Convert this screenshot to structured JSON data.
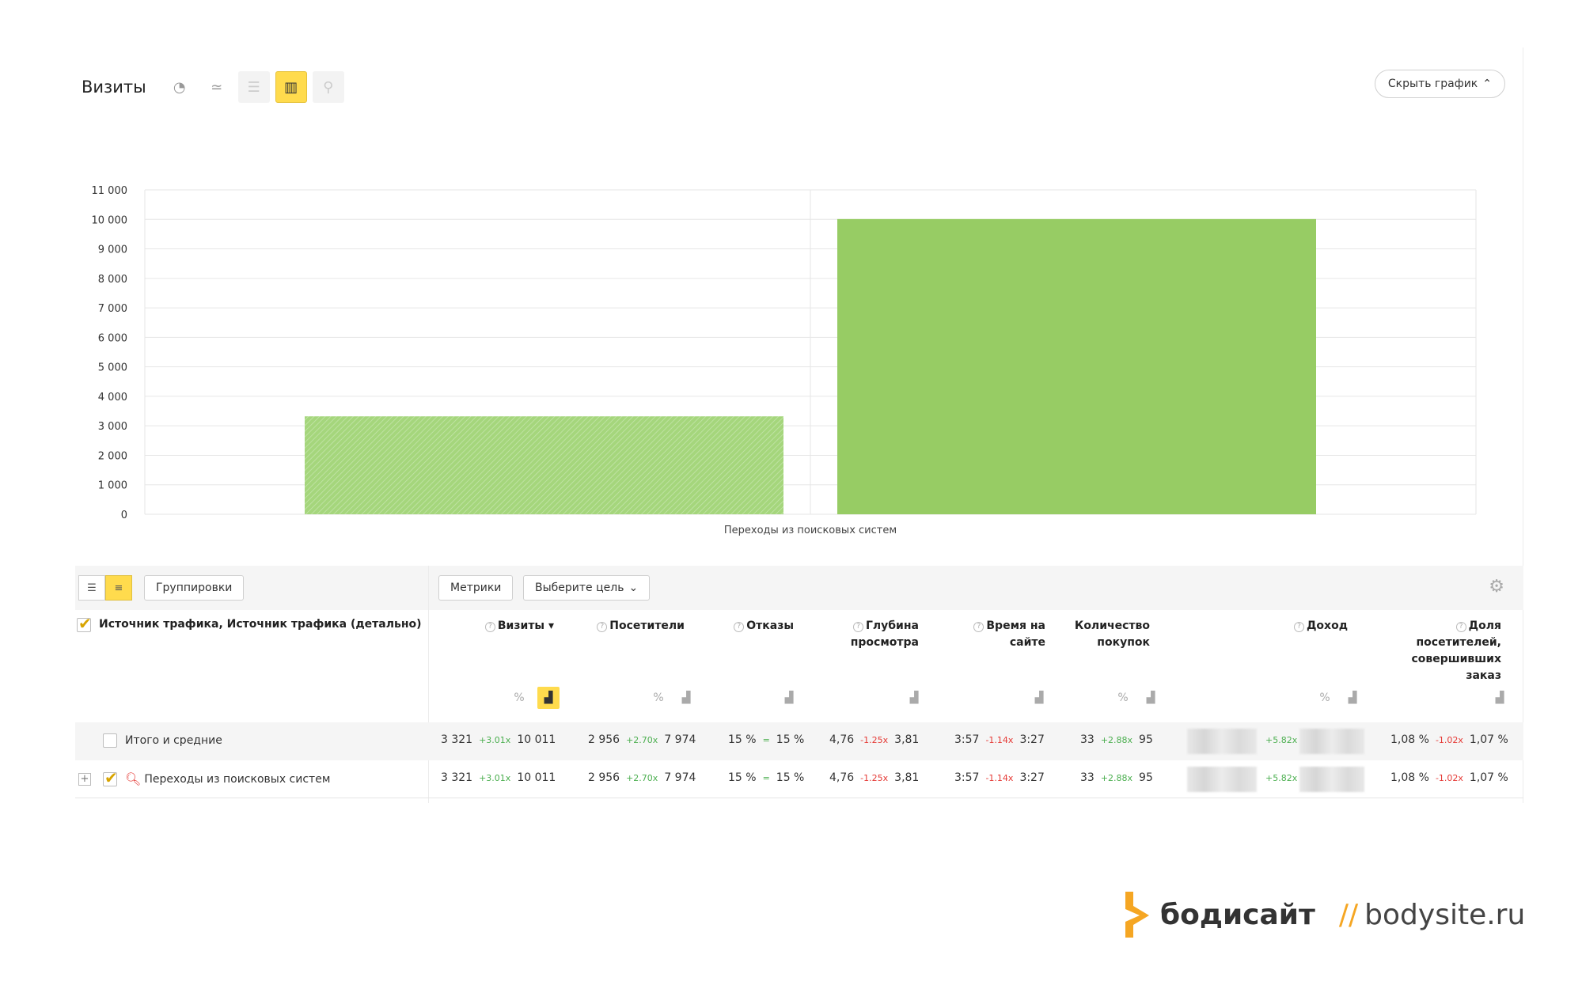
{
  "header": {
    "title": "Визиты",
    "hide_label": "Скрыть график"
  },
  "chart_data": {
    "type": "bar",
    "categories": [
      "Переходы из поисковых систем"
    ],
    "series": [
      {
        "values": [
          3321
        ],
        "color": "#a5d67c"
      },
      {
        "values": [
          10011
        ],
        "color": "#97cc64"
      }
    ],
    "yticks": [
      0,
      1000,
      2000,
      3000,
      4000,
      5000,
      6000,
      7000,
      8000,
      9000,
      10000,
      11000
    ],
    "ytick_labels": [
      "0",
      "1 000",
      "2 000",
      "3 000",
      "4 000",
      "5 000",
      "6 000",
      "7 000",
      "8 000",
      "9 000",
      "10 000",
      "11 000"
    ],
    "ylim": [
      0,
      11000
    ],
    "grid": true
  },
  "toolbar": {
    "groupings_label": "Группировки",
    "metrics_label": "Метрики",
    "goal_label": "Выберите цель"
  },
  "table": {
    "dimension_header": "Источник трафика, Источник трафика (детально)",
    "columns": {
      "visits": "Визиты",
      "visitors": "Посетители",
      "bounces": "Отказы",
      "depth_1": "Глубина",
      "depth_2": "просмотра",
      "time_1": "Время на",
      "time_2": "сайте",
      "purchases_1": "Количество",
      "purchases_2": "покупок",
      "revenue": "Доход",
      "share_1": "Доля",
      "share_2": "посетителей,",
      "share_3": "совершивших",
      "share_4": "заказ"
    },
    "rows": [
      {
        "label": "Итого и средние",
        "visits": [
          "3 321",
          "+3.01x",
          "10 011"
        ],
        "visitors": [
          "2 956",
          "+2.70x",
          "7 974"
        ],
        "bounces": [
          "15 %",
          "=",
          "15 %"
        ],
        "depth": [
          "4,76",
          "-1.25x",
          "3,81"
        ],
        "time": [
          "3:57",
          "-1.14x",
          "3:27"
        ],
        "purchases": [
          "33",
          "+2.88x",
          "95"
        ],
        "revenue_delta": "+5.82x",
        "share": [
          "1,08 %",
          "-1.02x",
          "1,07 %"
        ]
      },
      {
        "label": "Переходы из поисковых систем",
        "visits": [
          "3 321",
          "+3.01x",
          "10 011"
        ],
        "visitors": [
          "2 956",
          "+2.70x",
          "7 974"
        ],
        "bounces": [
          "15 %",
          "=",
          "15 %"
        ],
        "depth": [
          "4,76",
          "-1.25x",
          "3,81"
        ],
        "time": [
          "3:57",
          "-1.14x",
          "3:27"
        ],
        "purchases": [
          "33",
          "+2.88x",
          "95"
        ],
        "revenue_delta": "+5.82x",
        "share": [
          "1,08 %",
          "-1.02x",
          "1,07 %"
        ]
      }
    ]
  },
  "logo": {
    "brand": "бодисайт",
    "slashes": "//",
    "site": "bodysite.ru",
    "accent": "#f5a623"
  }
}
